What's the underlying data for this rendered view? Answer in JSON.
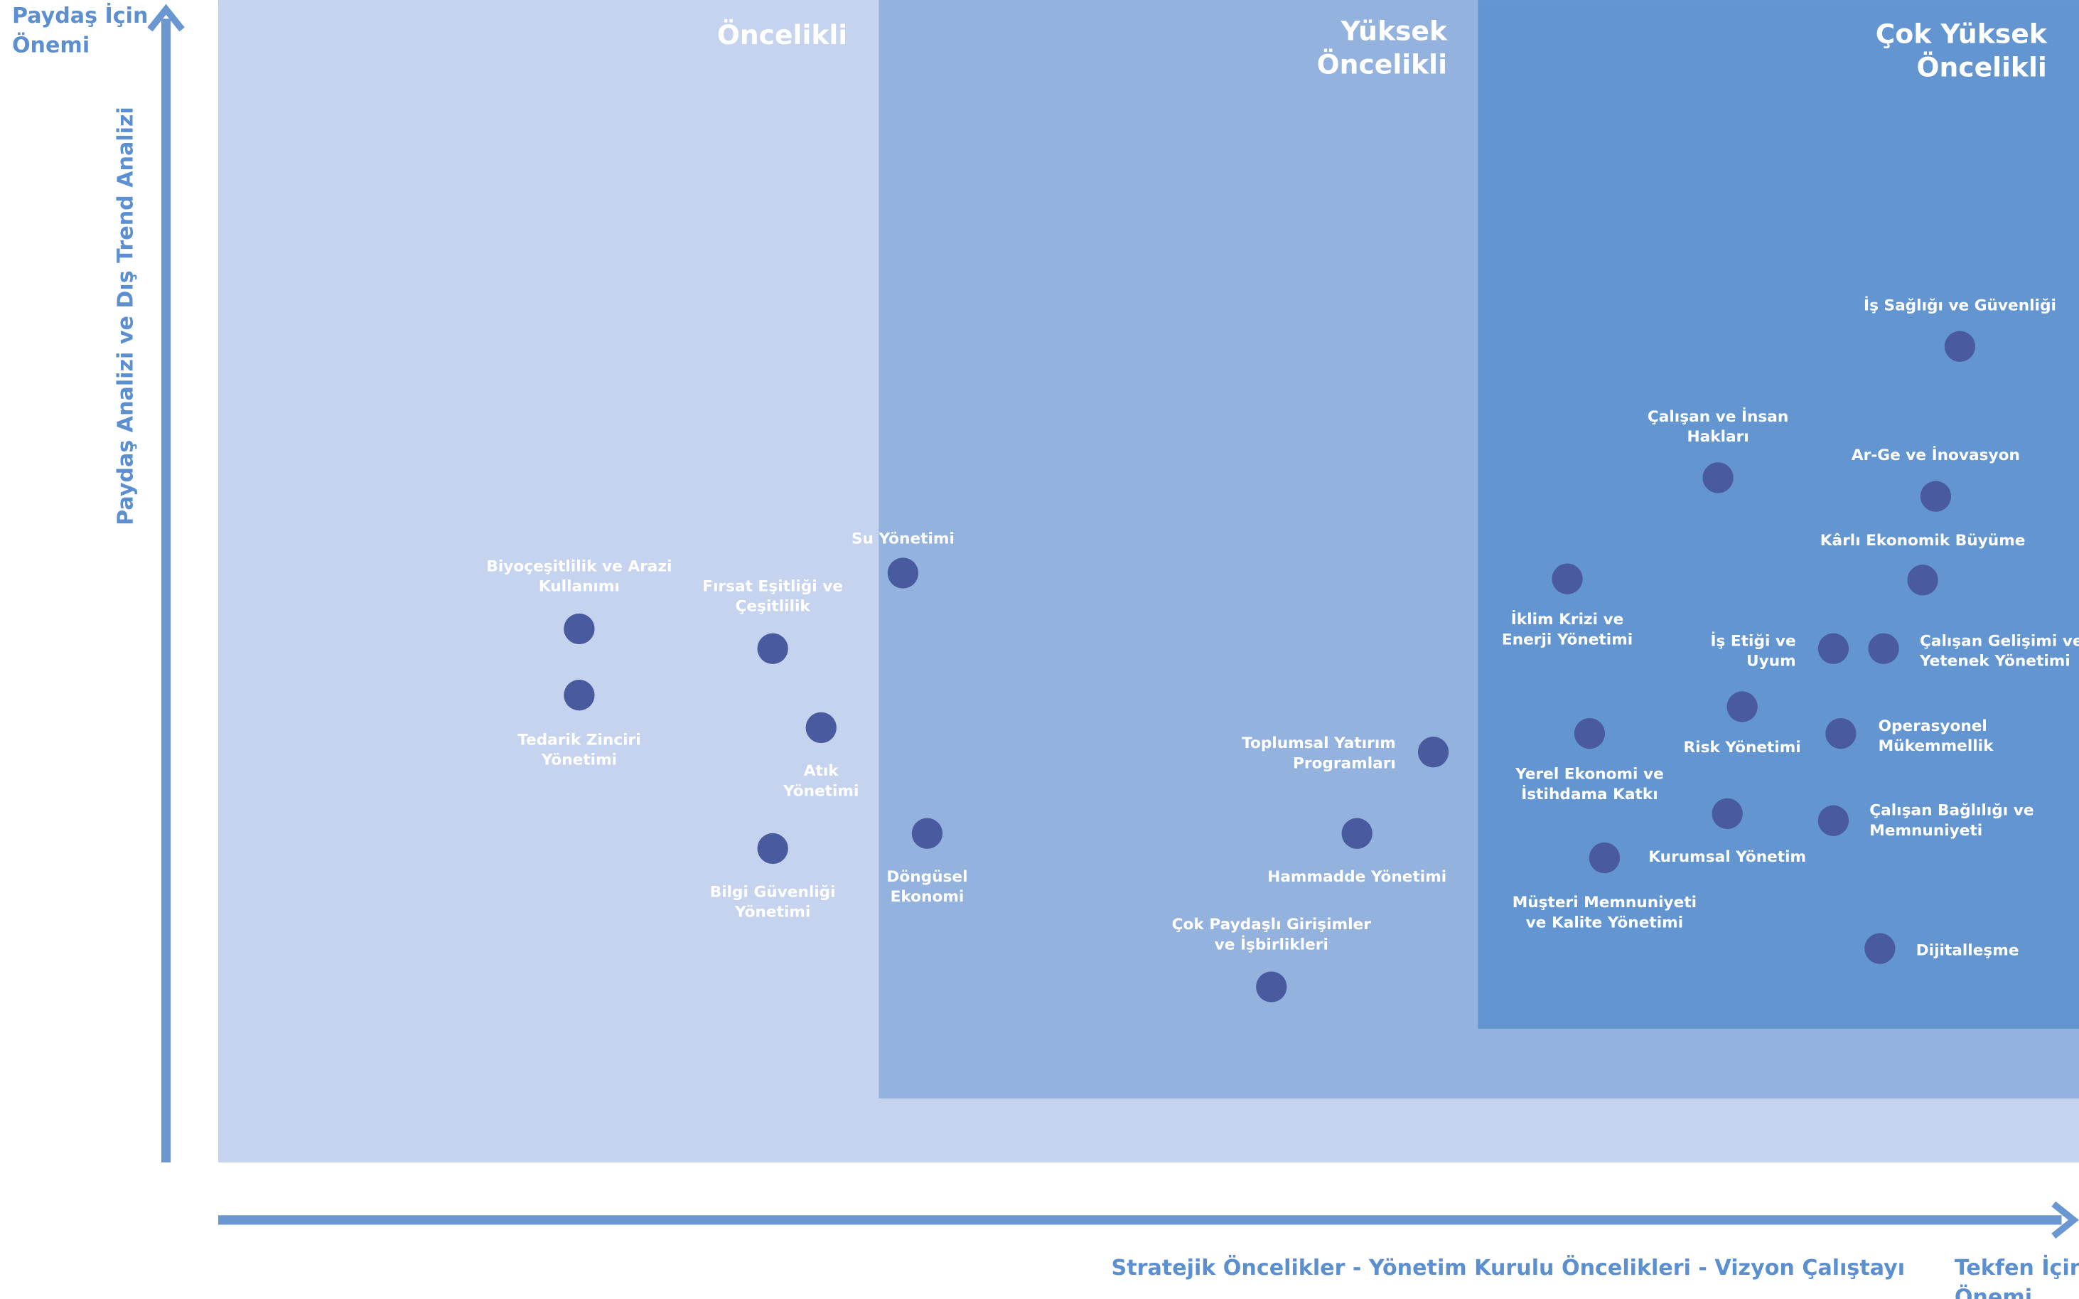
{
  "chart_data": {
    "type": "scatter",
    "y_axis_title": [
      "Paydaş İçin",
      "Önemi"
    ],
    "y_axis_label": "Paydaş Analizi ve Dış Trend Analizi",
    "x_axis_label": "Stratejik Öncelikler - Yönetim Kurulu Öncelikleri - Vizyon Çalıştayı",
    "x_axis_title": [
      "Tekfen İçin",
      "Önemi"
    ],
    "xlim": [
      0,
      100
    ],
    "ylim": [
      0,
      100
    ],
    "point_color": "#4a5a9e",
    "zones": [
      {
        "label": [
          "Öncelikli"
        ],
        "x0": 0,
        "x1": 100,
        "y0": 0,
        "y1": 100,
        "color": "#c5d3ee"
      },
      {
        "label": [
          "Yüksek",
          "Öncelikli"
        ],
        "x0": 35.5,
        "x1": 100,
        "y0": 5.5,
        "y1": 100,
        "color": "#93b2dd"
      },
      {
        "label": [
          "Çok Yüksek",
          "Öncelikli"
        ],
        "x0": 67.7,
        "x1": 100,
        "y0": 11.5,
        "y1": 100,
        "color": "#6396d1"
      }
    ],
    "points": [
      {
        "label": [
          "Biyoçeşitlilik ve Arazi",
          "Kullanımı"
        ],
        "x": 19.4,
        "y": 45.9
      },
      {
        "label": [
          "Tedarik Zinciri",
          "Yönetimi"
        ],
        "x": 19.4,
        "y": 40.2
      },
      {
        "label": [
          "Fırsat Eşitliği ve",
          "Çeşitlilik"
        ],
        "x": 29.8,
        "y": 44.2
      },
      {
        "label": [
          "Su Yönetimi"
        ],
        "x": 36.8,
        "y": 50.7
      },
      {
        "label": [
          "Atık",
          "Yönetimi"
        ],
        "x": 32.4,
        "y": 37.4
      },
      {
        "label": [
          "Bilgi Güvenliği",
          "Yönetimi"
        ],
        "x": 29.8,
        "y": 27.0
      },
      {
        "label": [
          "Döngüsel",
          "Ekonomi"
        ],
        "x": 38.1,
        "y": 28.3
      },
      {
        "label": [
          "Toplumsal Yatırım",
          "Programları"
        ],
        "x": 65.3,
        "y": 35.3
      },
      {
        "label": [
          "Hammadde Yönetimi"
        ],
        "x": 61.2,
        "y": 28.3
      },
      {
        "label": [
          "Çok Paydaşlı Girişimler",
          "ve İşbirlikleri"
        ],
        "x": 56.6,
        "y": 15.1
      },
      {
        "label": [
          "İklim Krizi ve",
          "Enerji Yönetimi"
        ],
        "x": 72.5,
        "y": 50.2
      },
      {
        "label": [
          "Yerel Ekonomi ve",
          "İstihdama Katkı"
        ],
        "x": 73.7,
        "y": 36.9
      },
      {
        "label": [
          "Müşteri Memnuniyeti",
          "ve Kalite Yönetimi"
        ],
        "x": 74.5,
        "y": 26.2
      },
      {
        "label": [
          "Çalışan ve İnsan",
          "Hakları"
        ],
        "x": 80.6,
        "y": 58.9
      },
      {
        "label": [
          "Risk Yönetimi"
        ],
        "x": 81.9,
        "y": 39.2
      },
      {
        "label": [
          "Kurumsal Yönetim"
        ],
        "x": 81.1,
        "y": 30.0
      },
      {
        "label": [
          "İş Etiği ve",
          "Uyum"
        ],
        "x": 86.8,
        "y": 44.2
      },
      {
        "label": [
          "Çalışan Gelişimi ve",
          "Yetenek Yönetimi"
        ],
        "x": 89.5,
        "y": 44.2
      },
      {
        "label": [
          "Operasyonel",
          "Mükemmellik"
        ],
        "x": 87.2,
        "y": 36.9
      },
      {
        "label": [
          "Çalışan Bağlılığı ve",
          "Memnuniyeti"
        ],
        "x": 86.8,
        "y": 29.4
      },
      {
        "label": [
          "Dijitalleşme"
        ],
        "x": 89.3,
        "y": 18.4
      },
      {
        "label": [
          "İş Sağlığı ve Güvenliği"
        ],
        "x": 93.6,
        "y": 70.2
      },
      {
        "label": [
          "Ar-Ge ve İnovasyon"
        ],
        "x": 92.3,
        "y": 57.3
      },
      {
        "label": [
          "Kârlı Ekonomik Büyüme"
        ],
        "x": 91.6,
        "y": 50.1
      }
    ]
  }
}
